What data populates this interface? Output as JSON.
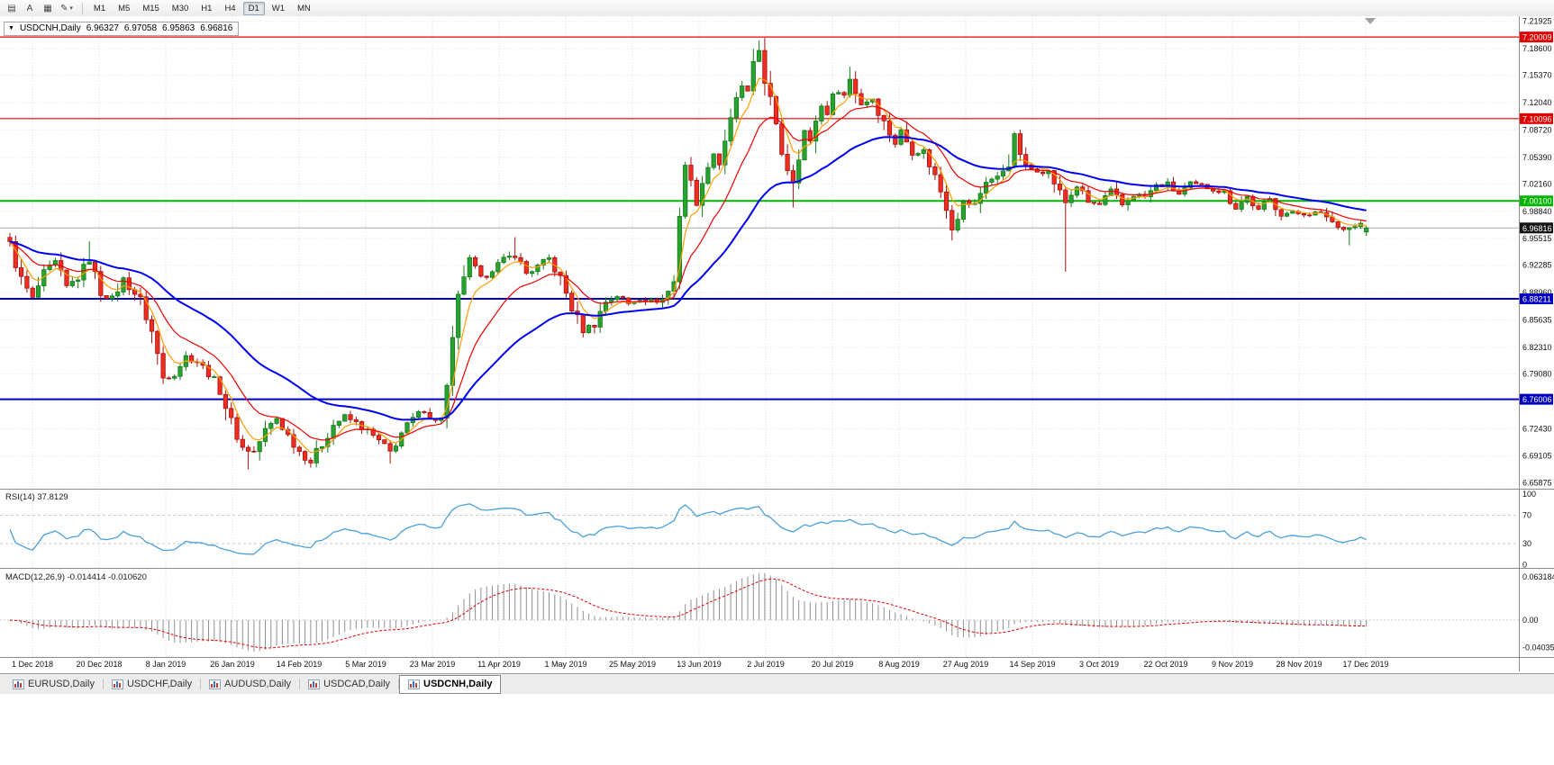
{
  "toolbar": {
    "icons": [
      {
        "name": "chart-list-icon",
        "glyph": "▤"
      },
      {
        "name": "text-annotation-button",
        "glyph": "A"
      },
      {
        "name": "chart-window-icon",
        "glyph": "▦"
      },
      {
        "name": "draw-tool-dropdown",
        "glyph": "✎",
        "caret": "▾"
      }
    ],
    "timeframes": [
      {
        "label": "M1",
        "active": false
      },
      {
        "label": "M5",
        "active": false
      },
      {
        "label": "M15",
        "active": false
      },
      {
        "label": "M30",
        "active": false
      },
      {
        "label": "H1",
        "active": false
      },
      {
        "label": "H4",
        "active": false
      },
      {
        "label": "D1",
        "active": true
      },
      {
        "label": "W1",
        "active": false
      },
      {
        "label": "MN",
        "active": false
      }
    ]
  },
  "chart_header": {
    "collapse_glyph": "▼",
    "symbol": "USDCNH,Daily",
    "open": "6.96327",
    "high": "6.97058",
    "low": "6.95863",
    "close": "6.96816"
  },
  "price_axis": {
    "scale_max": 7.2254,
    "scale_min": 6.6536,
    "ticks": [
      "7.21925",
      "7.18600",
      "7.15370",
      "7.12040",
      "7.08720",
      "7.05390",
      "7.02160",
      "6.98840",
      "6.95515",
      "6.92285",
      "6.88960",
      "6.85635",
      "6.82310",
      "6.79080",
      "6.75750",
      "6.72430",
      "6.69105",
      "6.65875"
    ]
  },
  "levels": [
    {
      "name": "resistance-line-1",
      "price": 7.20009,
      "label": "7.20009",
      "color": "#e00000",
      "width": 1.2
    },
    {
      "name": "resistance-line-2",
      "price": 7.10096,
      "label": "7.10096",
      "color": "#e00000",
      "width": 1.2
    },
    {
      "name": "pivot-line",
      "price": 7.001,
      "label": "7.00100",
      "color": "#00b400",
      "width": 2
    },
    {
      "name": "support-line-1",
      "price": 6.88211,
      "label": "6.88211",
      "color": "#0000be",
      "width": 2
    },
    {
      "name": "support-line-2",
      "price": 6.76006,
      "label": "6.76006",
      "color": "#0000be",
      "width": 2
    }
  ],
  "current_price": {
    "value": 6.96816,
    "label": "6.96816",
    "line_color": "#a8a8a8",
    "badge_bg": "#151515"
  },
  "time_axis": {
    "labels": [
      "1 Dec 2018",
      "20 Dec 2018",
      "8 Jan 2019",
      "26 Jan 2019",
      "14 Feb 2019",
      "5 Mar 2019",
      "23 Mar 2019",
      "11 Apr 2019",
      "1 May 2019",
      "25 May 2019",
      "13 Jun 2019",
      "2 Jul 2019",
      "20 Jul 2019",
      "8 Aug 2019",
      "27 Aug 2019",
      "14 Sep 2019",
      "3 Oct 2019",
      "22 Oct 2019",
      "9 Nov 2019",
      "28 Nov 2019",
      "17 Dec 2019"
    ]
  },
  "indicator_rsi": {
    "full_label": "RSI(14) 37.8129",
    "period": 14,
    "value": "37.8129",
    "axis_ticks": [
      "100",
      "70",
      "30",
      "0"
    ],
    "level_lines": [
      70,
      30
    ],
    "line_color": "#4aa0dc"
  },
  "indicator_macd": {
    "full_label": "MACD(12,26,9) -0.014414 -0.010620",
    "axis_ticks": [
      "0.063184",
      "0.00",
      "-0.040351"
    ],
    "histogram_color": "#909090",
    "signal_color": "#e00000"
  },
  "tabs": {
    "items": [
      {
        "label": "EURUSD,Daily",
        "active": false
      },
      {
        "label": "USDCHF,Daily",
        "active": false
      },
      {
        "label": "AUDUSD,Daily",
        "active": false
      },
      {
        "label": "USDCAD,Daily",
        "active": false
      },
      {
        "label": "USDCNH,Daily",
        "active": true
      }
    ]
  },
  "chart_data": {
    "type": "candlestick",
    "symbol": "USDCNH",
    "timeframe": "Daily",
    "date_range": [
      "1 Dec 2018",
      "17 Dec 2019"
    ],
    "bars": 240,
    "last_bar_ohlc": {
      "open": 6.96327,
      "high": 6.97058,
      "low": 6.95863,
      "close": 6.96816
    },
    "close_waypoints": [
      [
        0,
        6.948
      ],
      [
        2,
        6.905
      ],
      [
        4,
        6.882
      ],
      [
        6,
        6.912
      ],
      [
        8,
        6.926
      ],
      [
        10,
        6.896
      ],
      [
        12,
        6.908
      ],
      [
        14,
        6.93
      ],
      [
        16,
        6.89
      ],
      [
        18,
        6.882
      ],
      [
        20,
        6.906
      ],
      [
        23,
        6.88
      ],
      [
        25,
        6.842
      ],
      [
        27,
        6.786
      ],
      [
        29,
        6.792
      ],
      [
        31,
        6.812
      ],
      [
        33,
        6.806
      ],
      [
        35,
        6.792
      ],
      [
        37,
        6.772
      ],
      [
        39,
        6.732
      ],
      [
        41,
        6.701
      ],
      [
        43,
        6.696
      ],
      [
        45,
        6.722
      ],
      [
        47,
        6.737
      ],
      [
        49,
        6.716
      ],
      [
        51,
        6.697
      ],
      [
        53,
        6.684
      ],
      [
        55,
        6.706
      ],
      [
        57,
        6.729
      ],
      [
        59,
        6.739
      ],
      [
        61,
        6.731
      ],
      [
        63,
        6.721
      ],
      [
        65,
        6.709
      ],
      [
        67,
        6.696
      ],
      [
        69,
        6.719
      ],
      [
        71,
        6.736
      ],
      [
        73,
        6.747
      ],
      [
        75,
        6.733
      ],
      [
        76,
        6.741
      ],
      [
        77,
        6.772
      ],
      [
        78,
        6.822
      ],
      [
        79,
        6.877
      ],
      [
        80,
        6.912
      ],
      [
        81,
        6.929
      ],
      [
        83,
        6.906
      ],
      [
        85,
        6.919
      ],
      [
        87,
        6.929
      ],
      [
        89,
        6.936
      ],
      [
        91,
        6.913
      ],
      [
        93,
        6.921
      ],
      [
        95,
        6.931
      ],
      [
        97,
        6.906
      ],
      [
        99,
        6.871
      ],
      [
        101,
        6.844
      ],
      [
        103,
        6.852
      ],
      [
        105,
        6.879
      ],
      [
        107,
        6.886
      ],
      [
        109,
        6.876
      ],
      [
        111,
        6.883
      ],
      [
        113,
        6.879
      ],
      [
        115,
        6.881
      ],
      [
        117,
        6.902
      ],
      [
        118,
        6.992
      ],
      [
        119,
        7.046
      ],
      [
        120,
        7.021
      ],
      [
        121,
        6.999
      ],
      [
        122,
        7.016
      ],
      [
        123,
        7.049
      ],
      [
        124,
        7.059
      ],
      [
        125,
        7.046
      ],
      [
        126,
        7.076
      ],
      [
        127,
        7.096
      ],
      [
        128,
        7.121
      ],
      [
        129,
        7.141
      ],
      [
        130,
        7.131
      ],
      [
        131,
        7.161
      ],
      [
        132,
        7.184
      ],
      [
        133,
        7.151
      ],
      [
        134,
        7.121
      ],
      [
        135,
        7.086
      ],
      [
        136,
        7.061
      ],
      [
        137,
        7.041
      ],
      [
        138,
        7.026
      ],
      [
        139,
        7.061
      ],
      [
        140,
        7.086
      ],
      [
        141,
        7.071
      ],
      [
        142,
        7.101
      ],
      [
        143,
        7.116
      ],
      [
        144,
        7.109
      ],
      [
        145,
        7.126
      ],
      [
        146,
        7.136
      ],
      [
        147,
        7.129
      ],
      [
        148,
        7.149
      ],
      [
        150,
        7.119
      ],
      [
        152,
        7.126
      ],
      [
        154,
        7.096
      ],
      [
        156,
        7.071
      ],
      [
        157,
        7.086
      ],
      [
        159,
        7.061
      ],
      [
        161,
        7.061
      ],
      [
        163,
        7.031
      ],
      [
        165,
        6.996
      ],
      [
        166,
        6.969
      ],
      [
        168,
        6.999
      ],
      [
        170,
        6.996
      ],
      [
        172,
        7.026
      ],
      [
        174,
        7.029
      ],
      [
        176,
        7.049
      ],
      [
        177,
        7.079
      ],
      [
        179,
        7.041
      ],
      [
        181,
        7.039
      ],
      [
        183,
        7.036
      ],
      [
        185,
        7.011
      ],
      [
        186,
        6.999
      ],
      [
        188,
        7.019
      ],
      [
        190,
        6.999
      ],
      [
        192,
        6.996
      ],
      [
        194,
        7.013
      ],
      [
        196,
        6.996
      ],
      [
        198,
        7.009
      ],
      [
        200,
        7.006
      ],
      [
        202,
        7.019
      ],
      [
        204,
        7.021
      ],
      [
        206,
        7.009
      ],
      [
        208,
        7.021
      ],
      [
        210,
        7.019
      ],
      [
        212,
        7.016
      ],
      [
        214,
        7.011
      ],
      [
        216,
        6.993
      ],
      [
        218,
        7.006
      ],
      [
        220,
        6.989
      ],
      [
        222,
        7.003
      ],
      [
        224,
        6.986
      ],
      [
        226,
        6.986
      ],
      [
        228,
        6.986
      ],
      [
        230,
        6.986
      ],
      [
        232,
        6.983
      ],
      [
        234,
        6.969
      ],
      [
        236,
        6.969
      ],
      [
        238,
        6.973
      ],
      [
        239,
        6.96816
      ]
    ],
    "wick_spikes": [
      {
        "bar": 0,
        "high": 6.962
      },
      {
        "bar": 14,
        "high": 6.952
      },
      {
        "bar": 42,
        "low": 6.675
      },
      {
        "bar": 53,
        "low": 6.677
      },
      {
        "bar": 67,
        "low": 6.682
      },
      {
        "bar": 89,
        "high": 6.957
      },
      {
        "bar": 118,
        "low": 6.905
      },
      {
        "bar": 132,
        "high": 7.196
      },
      {
        "bar": 138,
        "low": 6.993
      },
      {
        "bar": 148,
        "high": 7.164
      },
      {
        "bar": 166,
        "low": 6.953
      },
      {
        "bar": 177,
        "high": 7.084
      },
      {
        "bar": 186,
        "low": 6.915
      },
      {
        "bar": 236,
        "low": 6.947
      }
    ],
    "style": {
      "up_fill": "#29a32f",
      "up_stroke": "#157a1b",
      "down_fill": "#ef2e21",
      "down_stroke": "#a31111"
    },
    "moving_averages": [
      {
        "name": "ma-fast-line",
        "period": 5,
        "color": "#ff9d00",
        "width": 1.2
      },
      {
        "name": "ma-medium-line",
        "period": 13,
        "color": "#f00000",
        "width": 1.2
      },
      {
        "name": "ma-slow-line",
        "period": 34,
        "color": "#0000f0",
        "width": 2
      }
    ]
  }
}
